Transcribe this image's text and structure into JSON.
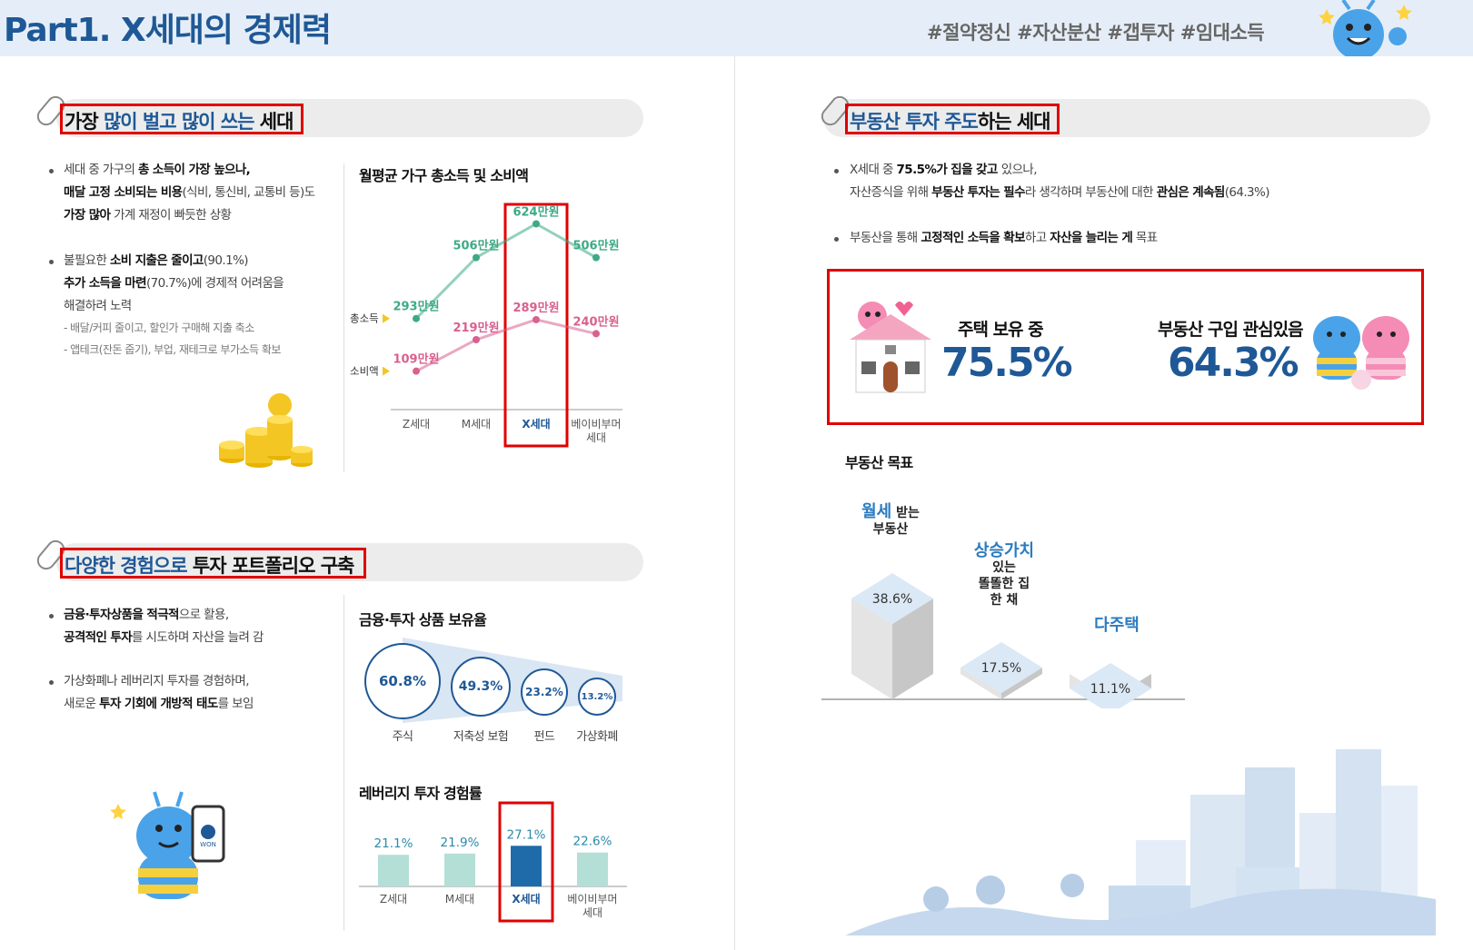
{
  "header": {
    "title": "Part1. X세대의 경제력",
    "hashtags": "#절약정신 #자산분산 #갭투자 #임대소득"
  },
  "section1": {
    "title_parts": [
      "가장 ",
      "많이 벌고 많이 쓰는",
      " 세대"
    ],
    "bullets": [
      [
        "세대 중 가구의 ",
        "총 소득이 가장 높으나,"
      ],
      [
        "매달 고정 소비되는 비용",
        "(식비, 통신비, 교통비 등)도"
      ],
      [
        "가장 많아",
        " 가계 재정이 빠듯한 상황"
      ],
      [
        "불필요한 ",
        "소비 지출은 줄이고",
        "(90.1%)"
      ],
      [
        "추가 소득을 마련",
        "(70.7%)에 경제적 어려움을"
      ],
      [
        "해결하려 노력"
      ]
    ],
    "notes": [
      "- 배달/커피 줄이고, 할인가 구매해 지출 축소",
      "- 앱테크(잔돈 줍기), 부업, 재테크로 부가소득 확보"
    ]
  },
  "section2": {
    "title_parts": [
      "다양한 경험으로",
      " 투자 포트폴리오 구축"
    ],
    "bullets": [
      [
        "금융·투자상품을 적극적",
        "으로 활용,"
      ],
      [
        "공격적인 투자",
        "를 시도하며 자산을 늘려 감"
      ],
      [
        "가상화폐나 레버리지 투자를 경험하며,"
      ],
      [
        "새로운 ",
        "투자 기회에 개방적 태도",
        "를 보임"
      ]
    ]
  },
  "section3": {
    "title_parts": [
      "부동산 투자 주도",
      "하는 세대"
    ],
    "bullets": [
      [
        "X세대 중 ",
        "75.5%가 집을 갖고 ",
        "있으나,"
      ],
      [
        "자산증식을 위해 ",
        "부동산 투자는 필수",
        "라 생각하며 부동산에 대한 ",
        "관심은 계속됨",
        "(64.3%)"
      ],
      [
        "부동산을 통해 ",
        "고정적인 소득을 확보",
        "하고 ",
        "자산을 늘리는 게",
        " 목표"
      ]
    ],
    "kpis": [
      {
        "label": "주택 보유 중",
        "value": "75.5%"
      },
      {
        "label": "부동산 구입 관심있음",
        "value": "64.3%"
      }
    ]
  },
  "chart_data": [
    {
      "type": "line",
      "title": "월평균 가구 총소득 및 소비액",
      "categories": [
        "Z세대",
        "M세대",
        "X세대",
        "베이비부머 세대"
      ],
      "series": [
        {
          "name": "총소득",
          "values": [
            293,
            506,
            624,
            506
          ],
          "labels": [
            "293만원",
            "506만원",
            "624만원",
            "506만원"
          ],
          "color": "#3daa85"
        },
        {
          "name": "소비액",
          "values": [
            109,
            219,
            289,
            240
          ],
          "labels": [
            "109만원",
            "219만원",
            "289만원",
            "240만원"
          ],
          "color": "#d9608f"
        }
      ],
      "highlight": "X세대"
    },
    {
      "type": "bubble",
      "title": "금융·투자 상품 보유율",
      "categories": [
        "주식",
        "저축성 보험",
        "펀드",
        "가상화폐"
      ],
      "values": [
        60.8,
        49.3,
        23.2,
        13.2
      ],
      "labels": [
        "60.8%",
        "49.3%",
        "23.2%",
        "13.2%"
      ]
    },
    {
      "type": "bar",
      "title": "레버리지 투자 경험률",
      "categories": [
        "Z세대",
        "M세대",
        "X세대",
        "베이비부머 세대"
      ],
      "values": [
        21.1,
        21.9,
        27.1,
        22.6
      ],
      "labels": [
        "21.1%",
        "21.9%",
        "27.1%",
        "22.6%"
      ],
      "highlight": "X세대"
    },
    {
      "type": "bar",
      "title": "부동산 목표",
      "categories": [
        "월세 받는 부동산",
        "상승가치 있는 똘똘한 집 한 채",
        "다주택"
      ],
      "values": [
        38.6,
        17.5,
        11.1
      ],
      "labels": [
        "38.6%",
        "17.5%",
        "11.1%"
      ]
    }
  ],
  "goal_labels": {
    "g1": [
      "월세",
      " 받는",
      "부동산"
    ],
    "g2": [
      "상승가치",
      "있는",
      "똘똘한 집",
      "한 채"
    ],
    "g3": [
      "다주택"
    ]
  },
  "icons": {
    "won": "WON"
  },
  "colors": {
    "accent": "#1f5896",
    "red": "#e00000",
    "income": "#3daa85",
    "spend": "#d9608f",
    "bar": "#b3dfd6",
    "bar_hl": "#1f6aa8"
  }
}
